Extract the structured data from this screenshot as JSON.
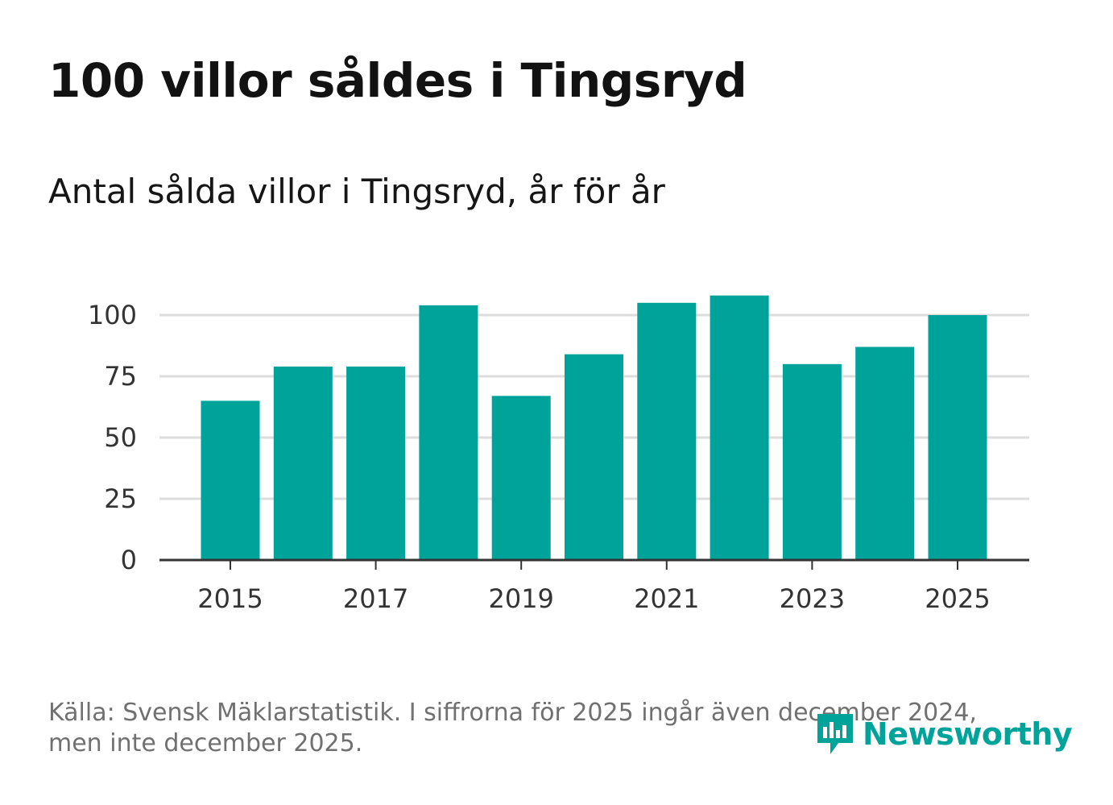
{
  "header": {
    "title": "100 villor såldes i Tingsryd",
    "subtitle": "Antal sålda villor i Tingsryd, år för år"
  },
  "footer": {
    "source_line1": "Källa: Svensk Mäklarstatistik. I siffrorna för 2025 ingår även december 2024,",
    "source_line2": "men inte december 2025.",
    "logo_text": "Newsworthy"
  },
  "colors": {
    "bar": "#00a39a",
    "grid": "#dddddd",
    "axis": "#333333"
  },
  "chart_data": {
    "type": "bar",
    "categories": [
      "2015",
      "2016",
      "2017",
      "2018",
      "2019",
      "2020",
      "2021",
      "2022",
      "2023",
      "2024",
      "2025"
    ],
    "values": [
      65,
      79,
      79,
      104,
      67,
      84,
      105,
      108,
      80,
      87,
      100
    ],
    "x_tick_labels": [
      "2015",
      "2017",
      "2019",
      "2021",
      "2023",
      "2025"
    ],
    "y_ticks": [
      0,
      25,
      50,
      75,
      100
    ],
    "ylim": [
      0,
      110
    ],
    "grid": true,
    "legend": "none"
  }
}
